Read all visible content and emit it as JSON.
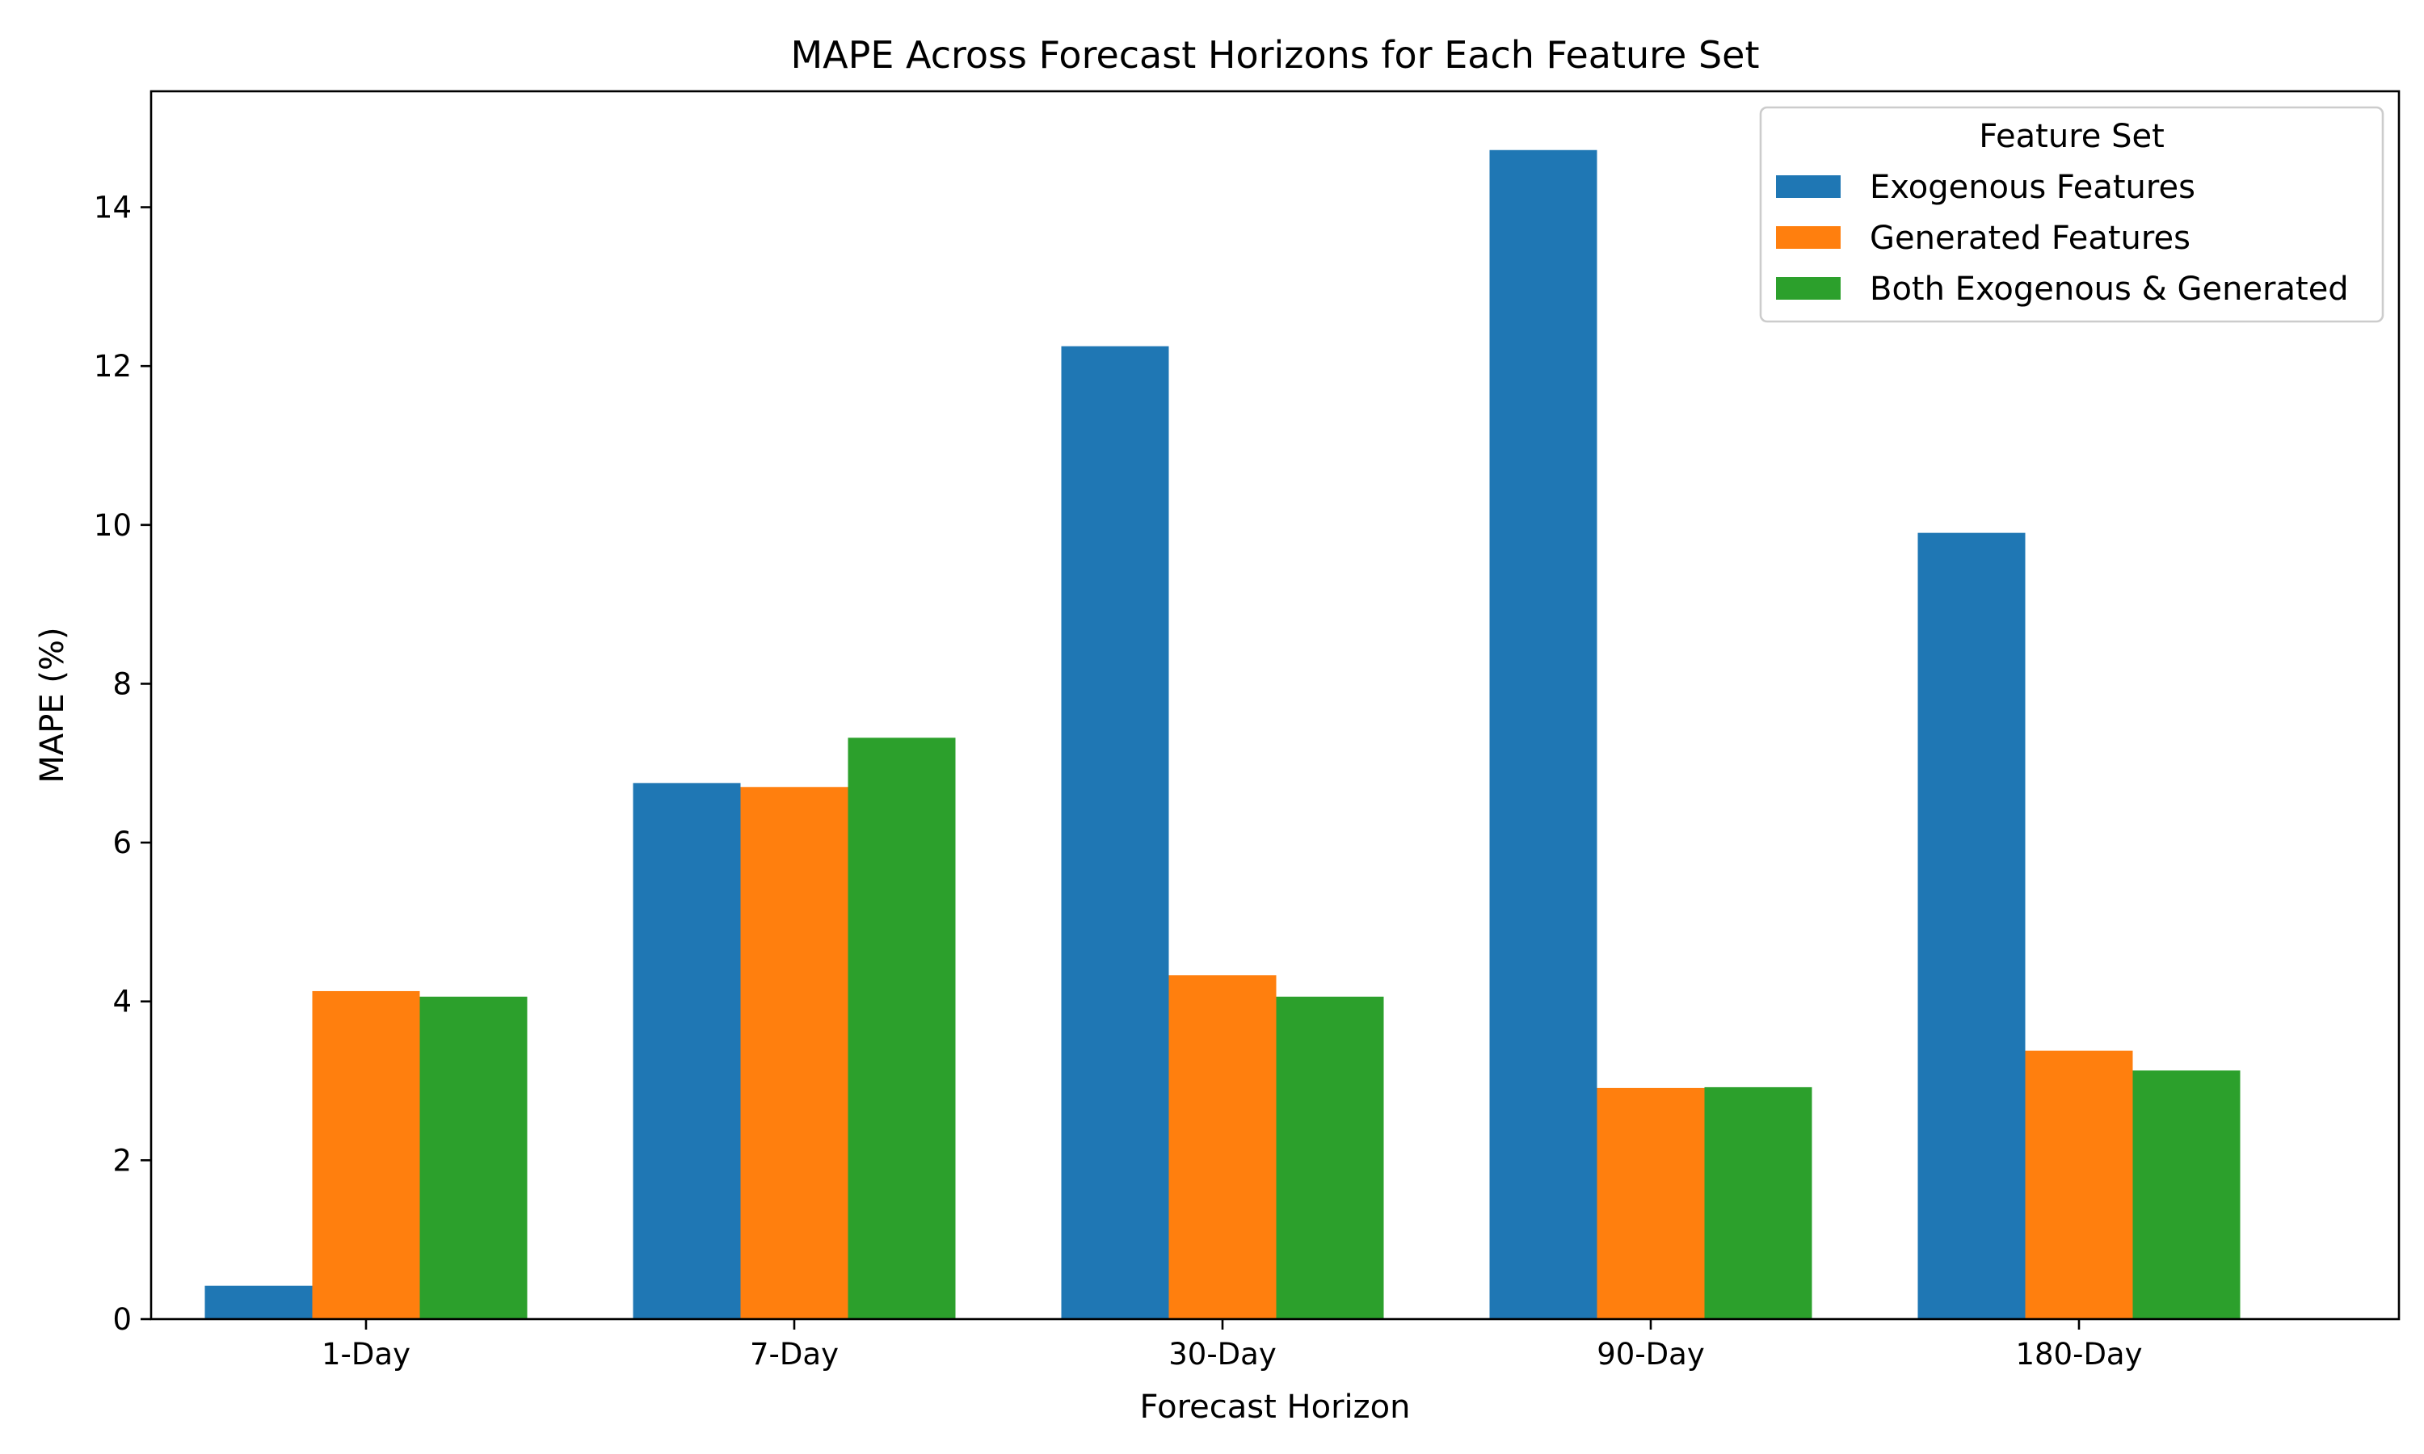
{
  "chart_data": {
    "type": "bar",
    "title": "MAPE Across Forecast Horizons for Each Feature Set",
    "xlabel": "Forecast Horizon",
    "ylabel": "MAPE (%)",
    "categories": [
      "1-Day",
      "7-Day",
      "30-Day",
      "90-Day",
      "180-Day"
    ],
    "series": [
      {
        "name": "Exogenous Features",
        "color": "#1f77b4",
        "values": [
          0.42,
          6.75,
          12.25,
          14.72,
          9.9
        ]
      },
      {
        "name": "Generated Features",
        "color": "#ff7f0e",
        "values": [
          4.13,
          6.7,
          4.33,
          2.91,
          3.38
        ]
      },
      {
        "name": "Both Exogenous & Generated",
        "color": "#2ca02c",
        "values": [
          4.06,
          7.32,
          4.06,
          2.92,
          3.13
        ]
      }
    ],
    "ylim": [
      0,
      15.46
    ],
    "yticks": [
      0,
      2,
      4,
      6,
      8,
      10,
      12,
      14
    ],
    "grid": false,
    "legend": {
      "title": "Feature Set",
      "position": "top-right"
    }
  }
}
